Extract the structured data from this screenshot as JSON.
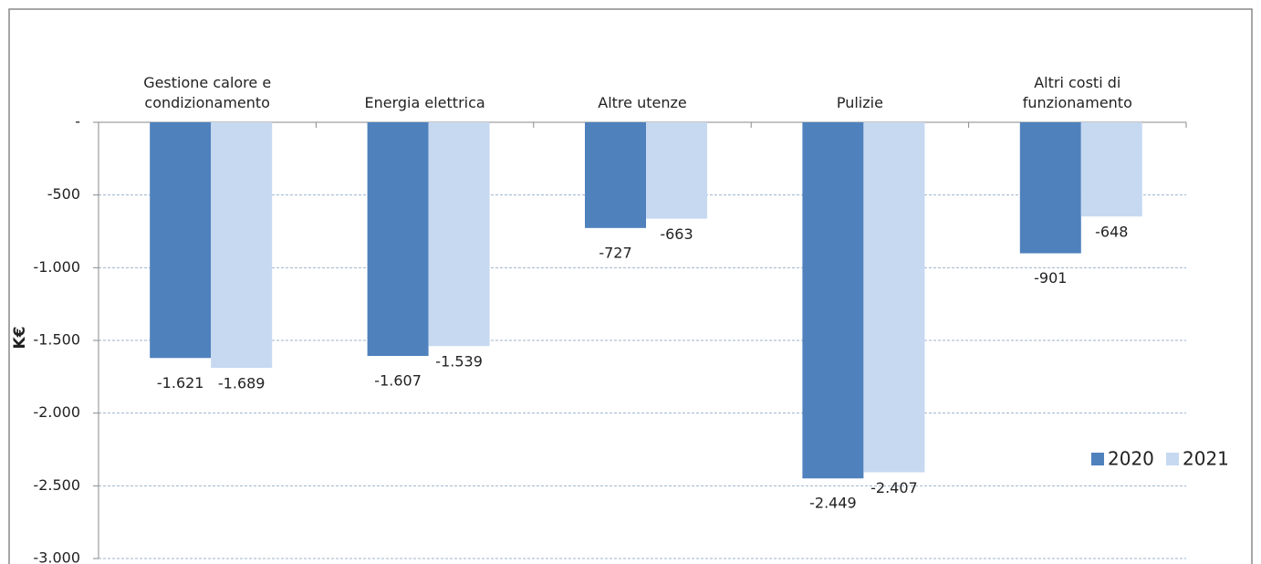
{
  "chart_data": {
    "type": "bar",
    "y_label": "K€",
    "categories": [
      "Gestione calore e condizionamento",
      "Energia elettrica",
      "Altre utenze",
      "Pulizie",
      "Altri costi di funzionamento"
    ],
    "series": [
      {
        "name": "2020",
        "color": "#4f81bd",
        "values": [
          -1621,
          -1607,
          -727,
          -2449,
          -901
        ],
        "value_labels": [
          "-1.621",
          "-1.607",
          "-727",
          "-2.449",
          "-901"
        ]
      },
      {
        "name": "2021",
        "color": "#c6d9f1",
        "values": [
          -1689,
          -1539,
          -663,
          -2407,
          -648
        ],
        "value_labels": [
          "-1.689",
          "-1.539",
          "-663",
          "-2.407",
          "-648"
        ]
      }
    ],
    "ylim": [
      -3000,
      0
    ],
    "yticks": [
      {
        "value": 0,
        "label": "-"
      },
      -500,
      {
        "value": -1000,
        "label": "-1.000"
      },
      {
        "value": -1500,
        "label": "-1.500"
      },
      {
        "value": -2000,
        "label": "-2.000"
      },
      {
        "value": -2500,
        "label": "-2.500"
      },
      {
        "value": -3000,
        "label": "-3.000"
      }
    ],
    "grid": true,
    "legend": "right"
  }
}
